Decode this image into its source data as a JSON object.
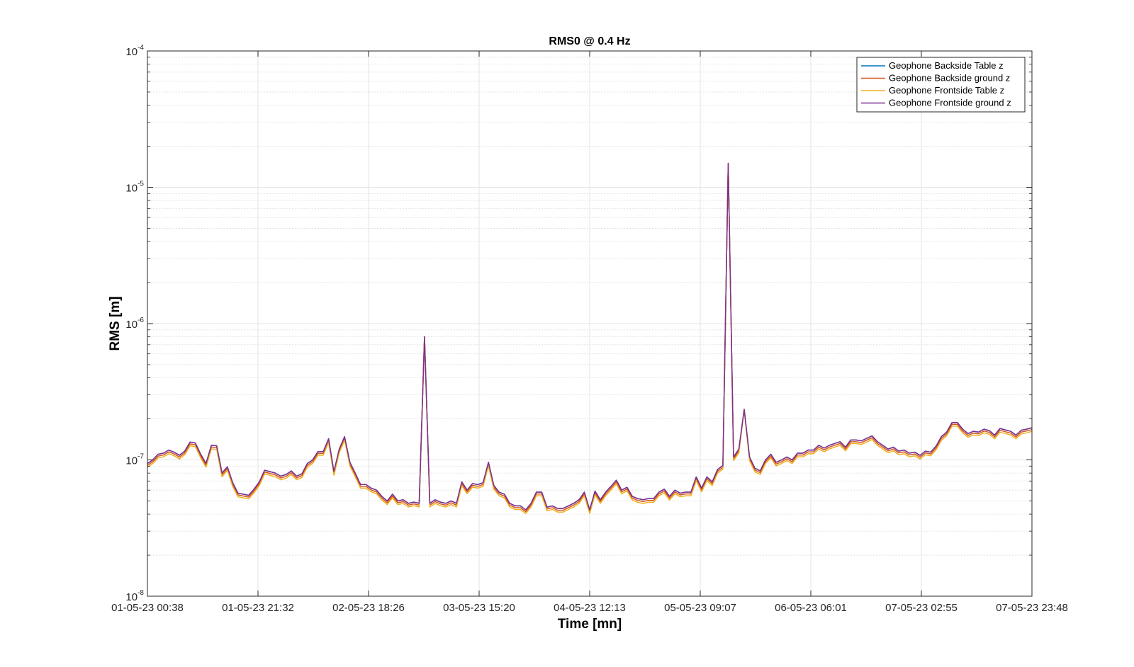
{
  "chart_data": {
    "type": "line",
    "title": "RMS0 @ 0.4 Hz",
    "xlabel": "Time [mn]",
    "ylabel": "RMS [m]",
    "yscale": "log",
    "ylim": [
      1e-08,
      0.0001
    ],
    "grid": true,
    "minor_grid": true,
    "legend_position": "top-right",
    "x_ticks": [
      "01-05-23 00:38",
      "01-05-23 21:32",
      "02-05-23 18:26",
      "03-05-23 15:20",
      "04-05-23 12:13",
      "05-05-23 09:07",
      "06-05-23 06:01",
      "07-05-23 02:55",
      "07-05-23 23:48"
    ],
    "y_ticks": [
      {
        "base": "10",
        "exp": "-8"
      },
      {
        "base": "10",
        "exp": "-7"
      },
      {
        "base": "10",
        "exp": "-6"
      },
      {
        "base": "10",
        "exp": "-5"
      },
      {
        "base": "10",
        "exp": "-4"
      }
    ],
    "series": [
      {
        "name": "Geophone Backside Table z",
        "color": "#0072BD",
        "offset": 1.0
      },
      {
        "name": "Geophone Backside ground z",
        "color": "#D95319",
        "offset": 0.97
      },
      {
        "name": "Geophone Frontside Table z",
        "color": "#EDB120",
        "offset": 0.94
      },
      {
        "name": "Geophone Frontside ground z",
        "color": "#7E2F8E",
        "offset": 1.0
      }
    ],
    "x_start": "01-05-23 00:38",
    "x_end": "07-05-23 23:48",
    "x_step_hours": 1,
    "values": [
      9.4e-08,
      1e-07,
      1.1e-07,
      1.12e-07,
      1.18e-07,
      1.14e-07,
      1.08e-07,
      1.16e-07,
      1.35e-07,
      1.33e-07,
      1.1e-07,
      9.4e-08,
      1.28e-07,
      1.27e-07,
      8e-08,
      8.9e-08,
      6.8e-08,
      5.7e-08,
      5.6e-08,
      5.5e-08,
      6.1e-08,
      6.9e-08,
      8.4e-08,
      8.2e-08,
      8e-08,
      7.6e-08,
      7.8e-08,
      8.3e-08,
      7.6e-08,
      7.9e-08,
      9.4e-08,
      1e-07,
      1.15e-07,
      1.15e-07,
      1.43e-07,
      8.2e-08,
      1.2e-07,
      1.48e-07,
      9.6e-08,
      8e-08,
      6.6e-08,
      6.6e-08,
      6.2e-08,
      6e-08,
      5.4e-08,
      5e-08,
      5.6e-08,
      5e-08,
      5.1e-08,
      4.8e-08,
      4.9e-08,
      4.8e-08,
      8e-07,
      4.8e-08,
      5.1e-08,
      4.9e-08,
      4.8e-08,
      5e-08,
      4.8e-08,
      6.9e-08,
      6e-08,
      6.7e-08,
      6.6e-08,
      6.8e-08,
      9.6e-08,
      6.5e-08,
      5.8e-08,
      5.6e-08,
      4.8e-08,
      4.6e-08,
      4.6e-08,
      4.3e-08,
      4.8e-08,
      5.8e-08,
      5.8e-08,
      4.5e-08,
      4.6e-08,
      4.4e-08,
      4.4e-08,
      4.6e-08,
      4.8e-08,
      5.1e-08,
      5.8e-08,
      4.3e-08,
      5.9e-08,
      5.1e-08,
      5.8e-08,
      6.4e-08,
      7.1e-08,
      6e-08,
      6.3e-08,
      5.4e-08,
      5.2e-08,
      5.1e-08,
      5.2e-08,
      5.2e-08,
      5.8e-08,
      6.1e-08,
      5.4e-08,
      6e-08,
      5.7e-08,
      5.8e-08,
      5.8e-08,
      7.5e-08,
      6.2e-08,
      7.5e-08,
      6.9e-08,
      8.5e-08,
      9.1e-08,
      1.5e-05,
      1.05e-07,
      1.2e-07,
      2.35e-07,
      1.05e-07,
      8.7e-08,
      8.3e-08,
      1e-07,
      1.1e-07,
      9.6e-08,
      1e-07,
      1.05e-07,
      1e-07,
      1.12e-07,
      1.12e-07,
      1.18e-07,
      1.18e-07,
      1.28e-07,
      1.22e-07,
      1.28e-07,
      1.32e-07,
      1.36e-07,
      1.24e-07,
      1.4e-07,
      1.4e-07,
      1.38e-07,
      1.44e-07,
      1.5e-07,
      1.36e-07,
      1.28e-07,
      1.2e-07,
      1.24e-07,
      1.16e-07,
      1.18e-07,
      1.12e-07,
      1.14e-07,
      1.08e-07,
      1.16e-07,
      1.14e-07,
      1.26e-07,
      1.48e-07,
      1.6e-07,
      1.88e-07,
      1.88e-07,
      1.68e-07,
      1.56e-07,
      1.62e-07,
      1.6e-07,
      1.68e-07,
      1.64e-07,
      1.52e-07,
      1.7e-07,
      1.66e-07,
      1.62e-07,
      1.52e-07,
      1.65e-07,
      1.68e-07,
      1.72e-07
    ]
  }
}
